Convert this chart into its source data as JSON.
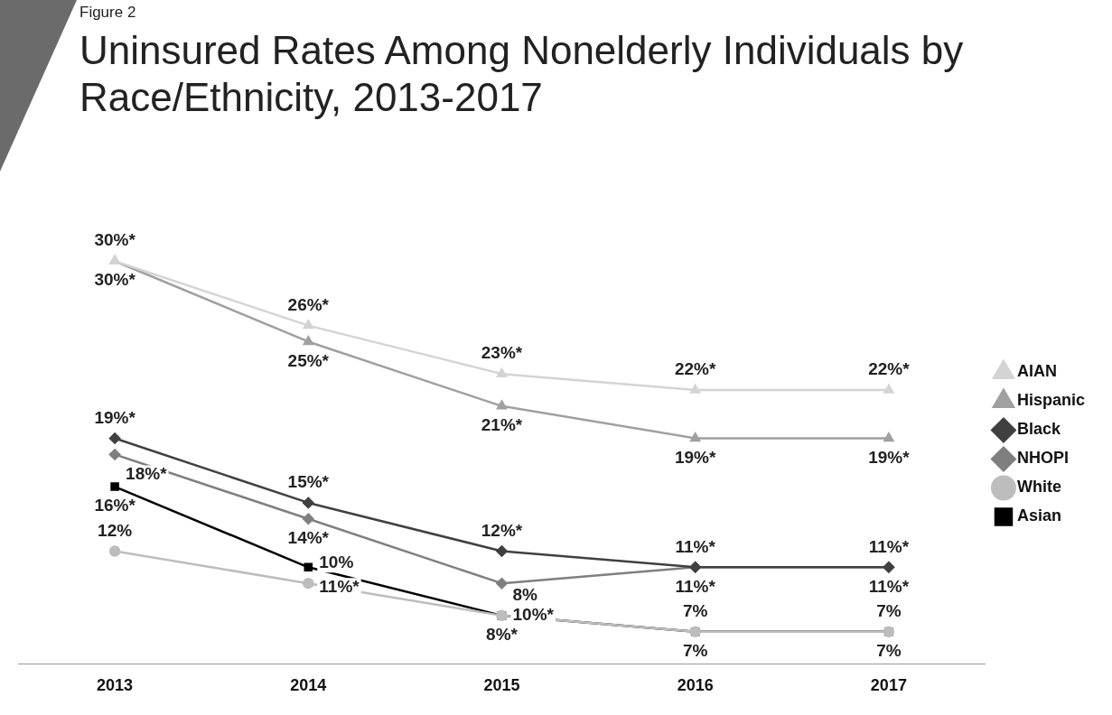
{
  "chart_data": {
    "type": "line",
    "title": "Uninsured Rates Among Nonelderly Individuals by Race/Ethnicity, 2013-2017",
    "annotations": [
      "Figure 2"
    ],
    "categories": [
      "2013",
      "2014",
      "2015",
      "2016",
      "2017"
    ],
    "series": [
      {
        "name": "AIAN",
        "color": "#d4d4d4",
        "marker": "triangle",
        "values": [
          30,
          26,
          23,
          22,
          22
        ],
        "value_labels": [
          "30%*",
          "26%*",
          "23%*",
          "22%*",
          "22%*"
        ]
      },
      {
        "name": "Hispanic",
        "color": "#a0a0a0",
        "marker": "triangle",
        "values": [
          30,
          25,
          21,
          19,
          19
        ],
        "value_labels": [
          "30%*",
          "25%*",
          "21%*",
          "19%*",
          "19%*"
        ]
      },
      {
        "name": "Black",
        "color": "#404040",
        "marker": "diamond",
        "values": [
          19,
          15,
          12,
          11,
          11
        ],
        "value_labels": [
          "19%*",
          "15%*",
          "12%*",
          "11%*",
          "11%*"
        ]
      },
      {
        "name": "NHOPI",
        "color": "#7f7f7f",
        "marker": "diamond",
        "values": [
          18,
          14,
          10,
          11,
          11
        ],
        "value_labels": [
          "18%*",
          "14%*",
          "10%*",
          "11%*",
          "11%*"
        ]
      },
      {
        "name": "White",
        "color": "#bdbdbd",
        "marker": "circle",
        "values": [
          12,
          10,
          8,
          7,
          7
        ],
        "value_labels": [
          "12%",
          "10%",
          "8%",
          "7%",
          "7%"
        ]
      },
      {
        "name": "Asian",
        "color": "#000000",
        "marker": "square",
        "values": [
          16,
          11,
          8,
          7,
          7
        ],
        "value_labels": [
          "16%*",
          "11%*",
          "8%*",
          "7%",
          "7%"
        ]
      }
    ],
    "legend": "right",
    "grid": false,
    "line_style": "solid"
  }
}
